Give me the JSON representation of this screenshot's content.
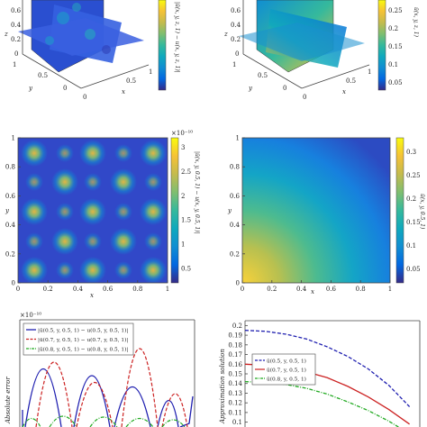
{
  "colors": {
    "parula": [
      "#352a87",
      "#0268e1",
      "#108ed2",
      "#0fa9bd",
      "#35b99c",
      "#7fbe70",
      "#c4bb4d",
      "#f5c236",
      "#f9fb0e"
    ],
    "blue": "#1f1fb0",
    "red": "#cc2222",
    "green": "#22aa22"
  },
  "panels": [
    {
      "id": "a",
      "type": "slice3d",
      "zlabel": "z",
      "ylabel": "y",
      "xlabel": "x",
      "z_ticks": [
        "0.6",
        "0.4",
        "0.2",
        "0"
      ],
      "y_ticks": [
        "1",
        "0.5",
        "0"
      ],
      "x_ticks": [
        "0.5",
        "1"
      ],
      "corner_tick": "0",
      "colorbar": {
        "ticks": [],
        "label": "|ū(x, y, z, 1) − u(x, y, z, 1)|"
      }
    },
    {
      "id": "b",
      "type": "slice3d",
      "zlabel": "z",
      "ylabel": "y",
      "xlabel": "x",
      "z_ticks": [
        "0.6",
        "0.4",
        "0.2",
        "0"
      ],
      "y_ticks": [
        "1",
        "0.5",
        "0"
      ],
      "x_ticks": [
        "0.5",
        "1"
      ],
      "corner_tick": "0",
      "colorbar": {
        "ticks": [
          "0.25",
          "0.2",
          "0.15",
          "0.1",
          "0.05"
        ],
        "label": "ū(x, y, z, 1)"
      }
    }
  ],
  "chart_data": [
    {
      "type": "heatmap",
      "panel": "c",
      "xlabel": "x",
      "ylabel": "y",
      "x_ticks": [
        "0",
        "0.2",
        "0.4",
        "0.6",
        "0.8",
        "1"
      ],
      "y_ticks": [
        "0",
        "0.2",
        "0.4",
        "0.6",
        "0.8",
        "1"
      ],
      "xlim": [
        0,
        1
      ],
      "ylim": [
        0,
        1
      ],
      "colorbar": {
        "exponent": "×10⁻¹⁰",
        "ticks": [
          "3",
          "2.5",
          "2",
          "1.5",
          "1",
          "0.5"
        ],
        "label": "|ū(x, y, 0.5, 1) − u(x, y, 0.5, 1)|"
      }
    },
    {
      "type": "heatmap",
      "panel": "d",
      "xlabel": "x",
      "ylabel": "y",
      "x_ticks": [
        "0",
        "0.2",
        "0.4",
        "0.6",
        "0.8",
        "1"
      ],
      "y_ticks": [
        "0",
        "0.2",
        "0.4",
        "0.6",
        "0.8",
        "1"
      ],
      "xlim": [
        0,
        1
      ],
      "ylim": [
        0,
        1
      ],
      "colorbar": {
        "ticks": [
          "0.3",
          "0.25",
          "0.2",
          "0.15",
          "0.1",
          "0.05"
        ],
        "range": [
          0.02,
          0.33
        ],
        "label": "ū(x, y, 0.5, 1)"
      }
    },
    {
      "type": "line",
      "panel": "e",
      "ylabel": "Absolute error",
      "exponent": "×10⁻¹⁰",
      "legend": "top-left",
      "series": [
        {
          "name": "|ū(0.5, y, 0.5, 1) − u(0.5, y, 0.5, 1)|",
          "style": "solid",
          "color": "#1f1fb0"
        },
        {
          "name": "|ū(0.7, y, 0.5, 1) − u(0.7, y, 0.5, 1)|",
          "style": "dashed",
          "color": "#cc2222"
        },
        {
          "name": "|ū(0.8, y, 0.5, 1) − u(0.8, y, 0.5, 1)|",
          "style": "dashdot",
          "color": "#22aa22"
        }
      ]
    },
    {
      "type": "line",
      "panel": "f",
      "ylabel": "Approximation solution",
      "y_ticks": [
        "0.2",
        "0.19",
        "0.18",
        "0.17",
        "0.16",
        "0.15",
        "0.14",
        "0.13",
        "0.12",
        "0.11",
        "0.1"
      ],
      "ylim": [
        0.095,
        0.205
      ],
      "legend": "top-left",
      "x": [
        0,
        0.1,
        0.2,
        0.3,
        0.4,
        0.5,
        0.6,
        0.7,
        0.8
      ],
      "series": [
        {
          "name": "ū(0.5, y, 0.5, 1)",
          "style": "dashed",
          "color": "#1f1fb0",
          "values": [
            0.195,
            0.194,
            0.191,
            0.186,
            0.178,
            0.168,
            0.155,
            0.138,
            0.116
          ]
        },
        {
          "name": "ū(0.7, y, 0.5, 1)",
          "style": "solid",
          "color": "#cc2222",
          "values": [
            0.16,
            0.159,
            0.156,
            0.152,
            0.146,
            0.137,
            0.126,
            0.113,
            0.098
          ]
        },
        {
          "name": "ū(0.8, y, 0.5, 1)",
          "style": "dashdot",
          "color": "#22aa22",
          "values": [
            0.142,
            0.141,
            0.139,
            0.135,
            0.129,
            0.121,
            0.112,
            0.101,
            0.088
          ]
        }
      ]
    }
  ]
}
